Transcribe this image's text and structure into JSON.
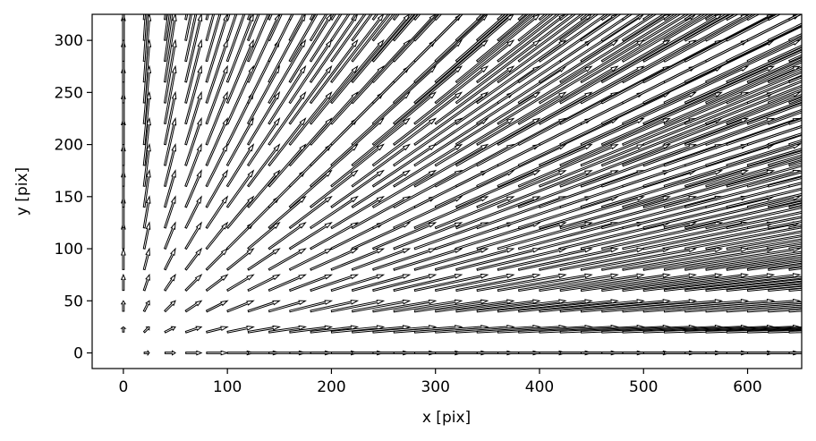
{
  "chart_data": {
    "type": "quiver",
    "title": "",
    "xlabel": "x [pix]",
    "ylabel": "y [pix]",
    "xlim": [
      -30,
      652
    ],
    "ylim": [
      -15,
      325
    ],
    "xticks": [
      0,
      100,
      200,
      300,
      400,
      500,
      600
    ],
    "yticks": [
      0,
      50,
      100,
      150,
      200,
      250,
      300
    ],
    "grid": false,
    "legend": "none",
    "arrow_color": "#000000",
    "arrow_fill": "#ffffff",
    "grid_spacing": 20,
    "arrow_scale": 0.25,
    "description_of_field": "radial vector field from origin, arrows at each grid point pointing away from (0,0), length proportional to distance"
  }
}
